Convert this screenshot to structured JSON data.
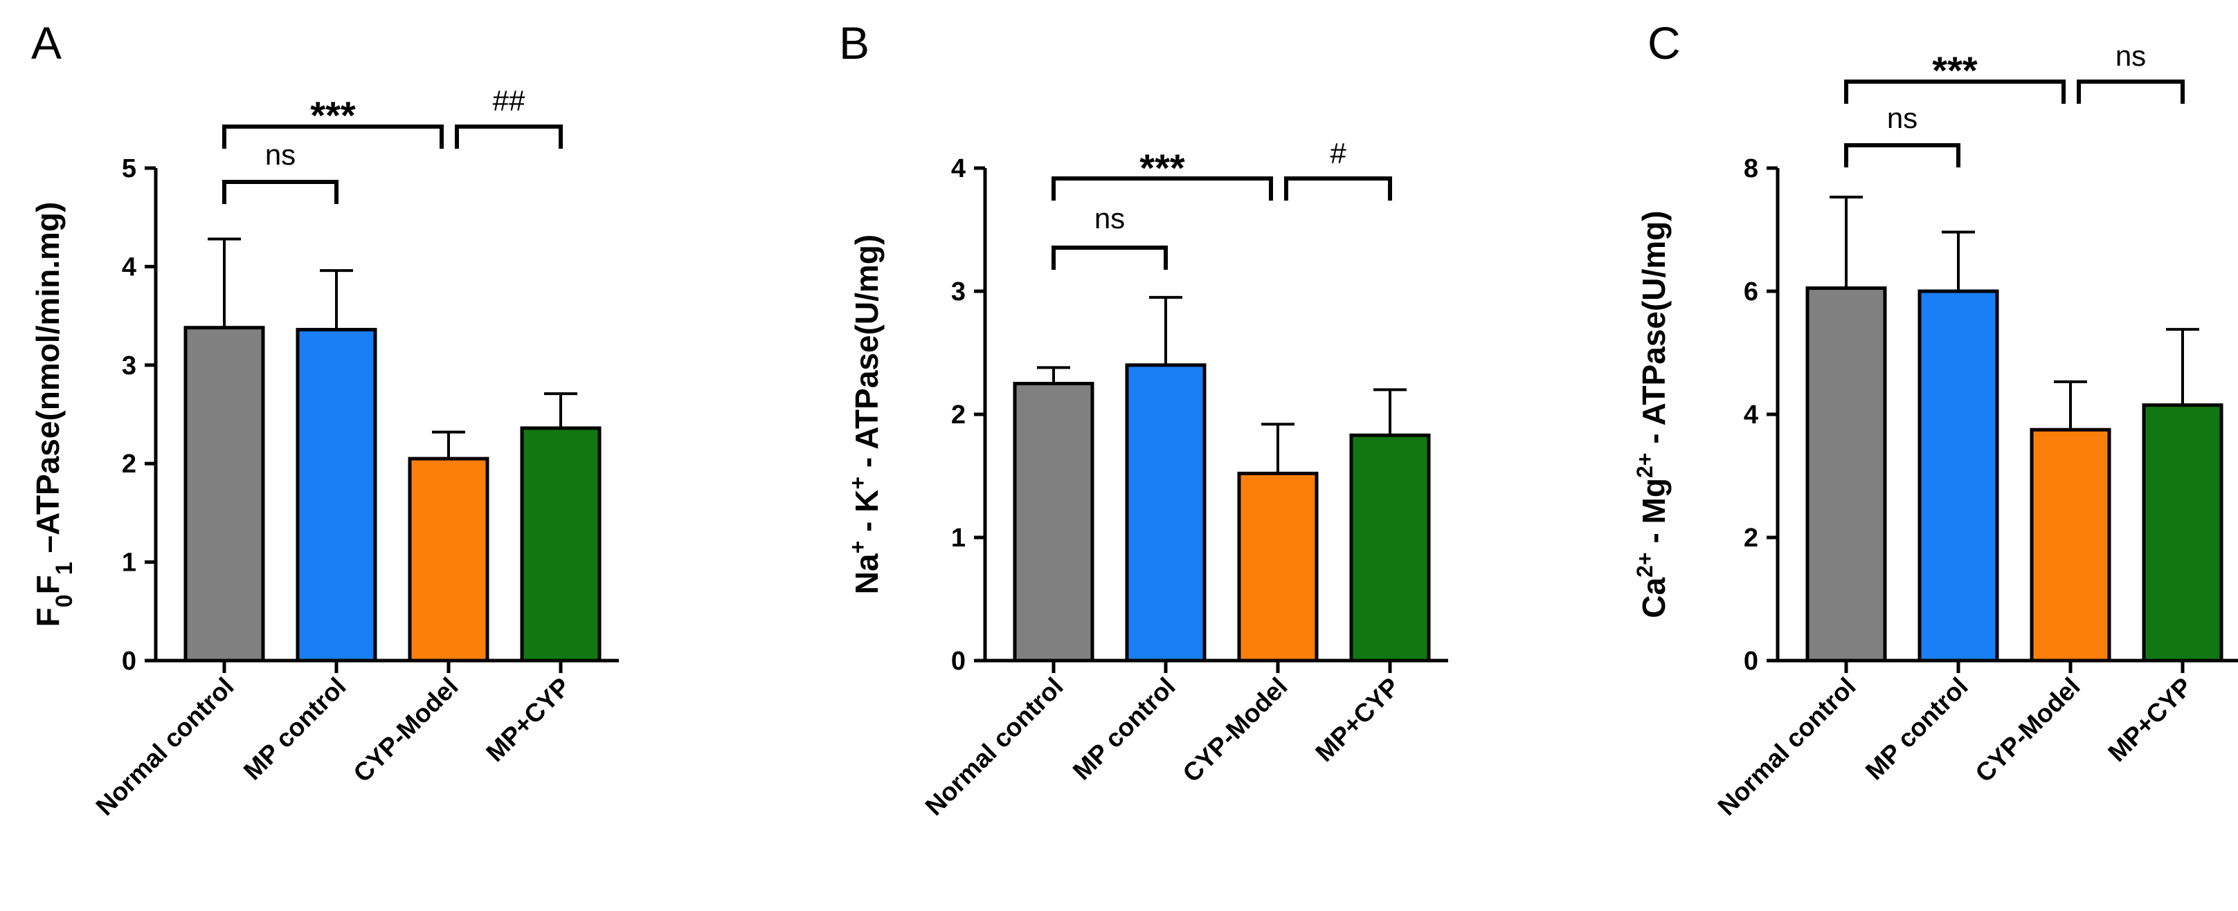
{
  "chart_data": [
    {
      "panel": "A",
      "type": "bar",
      "categories": [
        "Normal control",
        "MP control",
        "CYP-Model",
        "MP+CYP"
      ],
      "values": [
        3.38,
        3.36,
        2.05,
        2.36
      ],
      "errors": [
        0.9,
        0.6,
        0.27,
        0.35
      ],
      "colors": [
        "#808080",
        "#1a7ff5",
        "#fa7f0a",
        "#117811"
      ],
      "ylabel": "F0F1 –ATPase(nmol/min.mg)",
      "ylim": [
        0,
        5
      ],
      "yticks": [
        0,
        1,
        2,
        3,
        4,
        5
      ],
      "annotations": [
        {
          "from": 0,
          "to": 2,
          "text": "***",
          "level": "top"
        },
        {
          "from": 2,
          "to": 3,
          "text": "##",
          "level": "top"
        },
        {
          "from": 0,
          "to": 1,
          "text": "ns",
          "level": "middle"
        }
      ]
    },
    {
      "panel": "B",
      "type": "bar",
      "categories": [
        "Normal control",
        "MP control",
        "CYP-Model",
        "MP+CYP"
      ],
      "values": [
        2.25,
        2.4,
        1.52,
        1.83
      ],
      "errors": [
        0.13,
        0.55,
        0.4,
        0.37
      ],
      "colors": [
        "#808080",
        "#1a7ff5",
        "#fa7f0a",
        "#117811"
      ],
      "ylabel": "Na+ - K+ - ATPase(U/mg)",
      "ylim": [
        0,
        4
      ],
      "yticks": [
        0,
        1,
        2,
        3,
        4
      ],
      "annotations": [
        {
          "from": 0,
          "to": 2,
          "text": "***",
          "level": "top"
        },
        {
          "from": 2,
          "to": 3,
          "text": "#",
          "level": "top"
        },
        {
          "from": 0,
          "to": 1,
          "text": "ns",
          "level": "middle"
        }
      ]
    },
    {
      "panel": "C",
      "type": "bar",
      "categories": [
        "Normal control",
        "MP control",
        "CYP-Model",
        "MP+CYP"
      ],
      "values": [
        6.05,
        6.0,
        3.75,
        4.15
      ],
      "errors": [
        1.48,
        0.96,
        0.78,
        1.23
      ],
      "colors": [
        "#808080",
        "#1a7ff5",
        "#fa7f0a",
        "#117811"
      ],
      "ylabel": "Ca2+ - Mg2+ - ATPase(U/mg)",
      "ylim": [
        0,
        8
      ],
      "yticks": [
        0,
        2,
        4,
        6,
        8
      ],
      "annotations": [
        {
          "from": 0,
          "to": 2,
          "text": "***",
          "level": "top"
        },
        {
          "from": 2,
          "to": 3,
          "text": "ns",
          "level": "top"
        },
        {
          "from": 0,
          "to": 1,
          "text": "ns",
          "level": "middle"
        }
      ]
    }
  ]
}
